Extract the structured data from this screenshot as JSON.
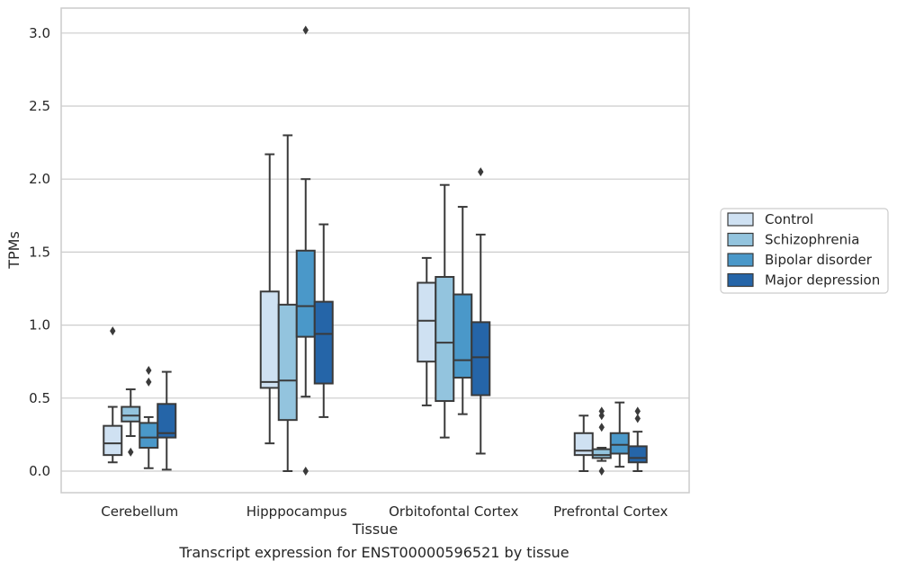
{
  "caption": "Transcript expression for ENST00000596521 by tissue",
  "chart_data": {
    "type": "box",
    "xlabel": "Tissue",
    "ylabel": "TPMs",
    "ylim": [
      -0.15,
      3.18
    ],
    "yticks": [
      0.0,
      0.5,
      1.0,
      1.5,
      2.0,
      2.5,
      3.0
    ],
    "ytick_labels": [
      "0.0",
      "0.5",
      "1.0",
      "1.5",
      "2.0",
      "2.5",
      "3.0"
    ],
    "grid": "horizontal",
    "legend_position": "right",
    "categories": [
      "Cerebellum",
      "Hipppocampus",
      "Orbitofontal Cortex",
      "Prefrontal Cortex"
    ],
    "series": [
      {
        "name": "Control",
        "color": "#cfe1f2",
        "boxes": [
          {
            "whislo": 0.06,
            "q1": 0.11,
            "med": 0.19,
            "q3": 0.31,
            "whishi": 0.44,
            "fliers": [
              0.96
            ]
          },
          {
            "whislo": 0.19,
            "q1": 0.57,
            "med": 0.61,
            "q3": 1.23,
            "whishi": 2.17,
            "fliers": []
          },
          {
            "whislo": 0.45,
            "q1": 0.75,
            "med": 1.03,
            "q3": 1.29,
            "whishi": 1.46,
            "fliers": []
          },
          {
            "whislo": 0.0,
            "q1": 0.11,
            "med": 0.14,
            "q3": 0.26,
            "whishi": 0.38,
            "fliers": []
          }
        ]
      },
      {
        "name": "Schizophrenia",
        "color": "#93c4de",
        "boxes": [
          {
            "whislo": 0.24,
            "q1": 0.34,
            "med": 0.38,
            "q3": 0.44,
            "whishi": 0.56,
            "fliers": [
              0.13
            ]
          },
          {
            "whislo": 0.0,
            "q1": 0.35,
            "med": 0.62,
            "q3": 1.14,
            "whishi": 2.3,
            "fliers": []
          },
          {
            "whislo": 0.23,
            "q1": 0.48,
            "med": 0.88,
            "q3": 1.33,
            "whishi": 1.96,
            "fliers": []
          },
          {
            "whislo": 0.07,
            "q1": 0.09,
            "med": 0.11,
            "q3": 0.15,
            "whishi": 0.16,
            "fliers": [
              0.0,
              0.3,
              0.38,
              0.41
            ]
          }
        ]
      },
      {
        "name": "Bipolar disorder",
        "color": "#4a98c9",
        "boxes": [
          {
            "whislo": 0.02,
            "q1": 0.16,
            "med": 0.23,
            "q3": 0.33,
            "whishi": 0.37,
            "fliers": [
              0.61,
              0.69
            ]
          },
          {
            "whislo": 0.51,
            "q1": 0.92,
            "med": 1.13,
            "q3": 1.51,
            "whishi": 2.0,
            "fliers": [
              0.0,
              3.02
            ]
          },
          {
            "whislo": 0.39,
            "q1": 0.64,
            "med": 0.76,
            "q3": 1.21,
            "whishi": 1.81,
            "fliers": []
          },
          {
            "whislo": 0.03,
            "q1": 0.12,
            "med": 0.18,
            "q3": 0.26,
            "whishi": 0.47,
            "fliers": []
          }
        ]
      },
      {
        "name": "Major depression",
        "color": "#2565a8",
        "boxes": [
          {
            "whislo": 0.01,
            "q1": 0.23,
            "med": 0.26,
            "q3": 0.46,
            "whishi": 0.68,
            "fliers": []
          },
          {
            "whislo": 0.37,
            "q1": 0.6,
            "med": 0.94,
            "q3": 1.16,
            "whishi": 1.69,
            "fliers": []
          },
          {
            "whislo": 0.12,
            "q1": 0.52,
            "med": 0.78,
            "q3": 1.02,
            "whishi": 1.62,
            "fliers": [
              2.05
            ]
          },
          {
            "whislo": 0.0,
            "q1": 0.06,
            "med": 0.09,
            "q3": 0.17,
            "whishi": 0.27,
            "fliers": [
              0.36,
              0.41
            ]
          }
        ]
      }
    ]
  }
}
